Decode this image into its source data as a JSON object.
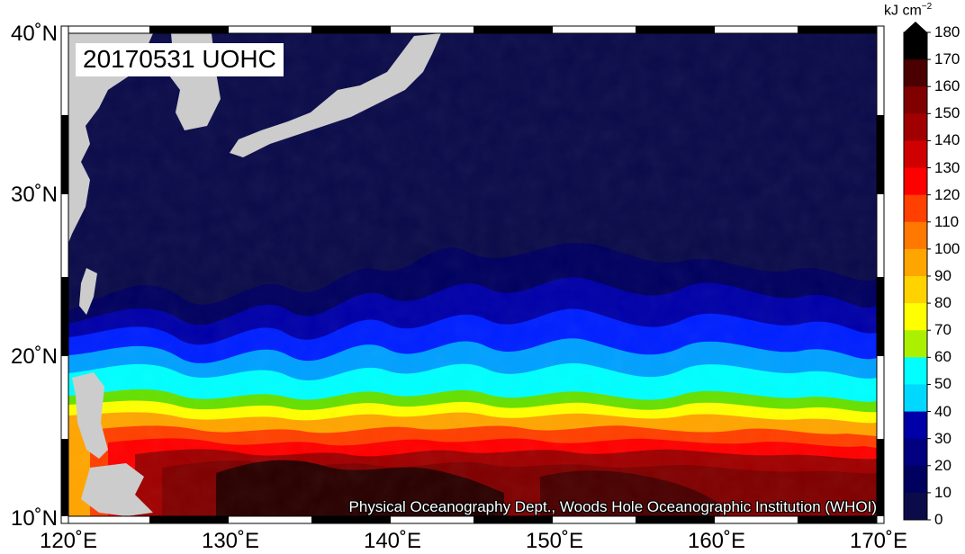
{
  "map": {
    "title": "20170531 UOHC",
    "credit": "Physical Oceanography Dept., Woods Hole Oceanographic Institution (WHOI)",
    "lon_labels": [
      "120˚E",
      "130˚E",
      "140˚E",
      "150˚E",
      "160˚E",
      "170˚E"
    ],
    "lat_labels": [
      "40˚N",
      "30˚N",
      "20˚N",
      "10˚N"
    ],
    "lon_range": [
      120,
      170
    ],
    "lat_range": [
      10,
      40
    ]
  },
  "colorbar": {
    "unit": "kJ cm",
    "unit_exp": "−2",
    "labels": [
      "180",
      "170",
      "160",
      "150",
      "140",
      "130",
      "120",
      "110",
      "100",
      "90",
      "80",
      "70",
      "60",
      "50",
      "40",
      "30",
      "20",
      "10",
      "0"
    ],
    "colors": [
      "#0b0b4a",
      "#00005f",
      "#000080",
      "#0000a8",
      "#0000d8",
      "#0020ff",
      "#0064ff",
      "#00a0ff",
      "#00d8ff",
      "#00ffff",
      "#66e000",
      "#ffff00",
      "#ffd200",
      "#ffa500",
      "#ff7800",
      "#ff4000",
      "#ff0000",
      "#d00000",
      "#a00000",
      "#800000",
      "#4a0000",
      "#000000"
    ],
    "land_color": "#cccccc",
    "ocean_color": "#0b0b4a"
  }
}
